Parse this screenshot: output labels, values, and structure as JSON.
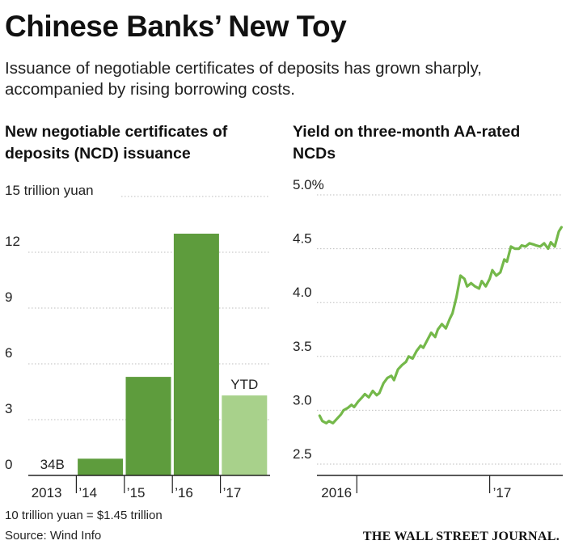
{
  "header": {
    "title": "Chinese Banks’ New Toy",
    "subtitle": "Issuance of negotiable certificates of deposits has grown sharply, accompanied by rising borrowing costs."
  },
  "colors": {
    "bar": "#5e9c3d",
    "bar_ytd": "#a8d18b",
    "line": "#74b84a",
    "grid": "#bdbdbd",
    "axis": "#222222"
  },
  "chart_data": [
    {
      "type": "bar",
      "title": "New negotiable certificates of deposits (NCD) issuance",
      "unit_label": "15 trillion yuan",
      "categories": [
        "2013",
        "’14",
        "’15",
        "’16",
        "’17"
      ],
      "values": [
        0.034,
        0.9,
        5.3,
        13.0,
        4.3
      ],
      "highlight_index": 4,
      "data_labels": [
        {
          "index": 0,
          "text": "34B"
        },
        {
          "index": 4,
          "text": "YTD"
        }
      ],
      "yticks": [
        0,
        3,
        6,
        9,
        12
      ],
      "ylim": [
        0,
        15
      ]
    },
    {
      "type": "line",
      "title": "Yield on three-month AA-rated NCDs",
      "yticks": [
        "2.5",
        "3.0",
        "3.5",
        "4.0",
        "4.5",
        "5.0%"
      ],
      "ytick_values": [
        2.5,
        3.0,
        3.5,
        4.0,
        4.5,
        5.0
      ],
      "ylim": [
        2.5,
        5.0
      ],
      "xticks": [
        "2016",
        "’17"
      ],
      "xtick_values": [
        2016.0,
        2017.0
      ],
      "xlim": [
        2015.7,
        2017.55
      ],
      "series": [
        {
          "name": "Yield",
          "x": [
            2015.72,
            2015.74,
            2015.77,
            2015.79,
            2015.82,
            2015.85,
            2015.88,
            2015.9,
            2015.93,
            2015.96,
            2015.98,
            2016.01,
            2016.04,
            2016.06,
            2016.09,
            2016.12,
            2016.15,
            2016.17,
            2016.2,
            2016.23,
            2016.26,
            2016.28,
            2016.31,
            2016.34,
            2016.37,
            2016.39,
            2016.42,
            2016.45,
            2016.48,
            2016.5,
            2016.53,
            2016.56,
            2016.59,
            2016.61,
            2016.64,
            2016.67,
            2016.7,
            2016.72,
            2016.75,
            2016.78,
            2016.81,
            2016.83,
            2016.86,
            2016.89,
            2016.92,
            2016.94,
            2016.97,
            2017.0,
            2017.02,
            2017.05,
            2017.08,
            2017.11,
            2017.13,
            2017.16,
            2017.19,
            2017.22,
            2017.24,
            2017.27,
            2017.3,
            2017.33,
            2017.35,
            2017.38,
            2017.41,
            2017.44,
            2017.46,
            2017.49,
            2017.52,
            2017.54
          ],
          "values": [
            2.95,
            2.9,
            2.88,
            2.9,
            2.88,
            2.92,
            2.96,
            3.0,
            3.02,
            3.05,
            3.03,
            3.08,
            3.12,
            3.15,
            3.12,
            3.18,
            3.14,
            3.16,
            3.25,
            3.3,
            3.32,
            3.28,
            3.38,
            3.42,
            3.45,
            3.5,
            3.48,
            3.55,
            3.6,
            3.58,
            3.65,
            3.72,
            3.68,
            3.75,
            3.8,
            3.76,
            3.85,
            3.9,
            4.05,
            4.25,
            4.22,
            4.15,
            4.18,
            4.15,
            4.13,
            4.2,
            4.15,
            4.22,
            4.3,
            4.25,
            4.28,
            4.4,
            4.38,
            4.52,
            4.5,
            4.5,
            4.53,
            4.52,
            4.55,
            4.54,
            4.53,
            4.52,
            4.55,
            4.5,
            4.56,
            4.52,
            4.66,
            4.7
          ]
        }
      ]
    }
  ],
  "footer": {
    "conversion_note": "10 trillion yuan = $1.45 trillion",
    "source": "Source: Wind Info",
    "brand": "THE WALL STREET JOURNAL."
  }
}
